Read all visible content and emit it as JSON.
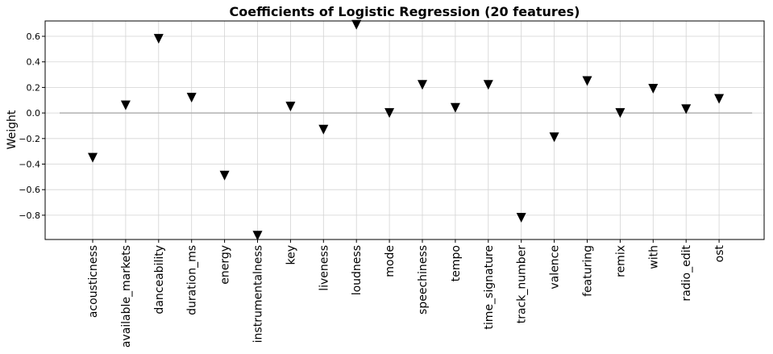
{
  "chart_data": {
    "type": "scatter",
    "title": "Coefficients of Logistic Regression (20 features)",
    "xlabel": "",
    "ylabel": "Weight",
    "marker": "triangle-down",
    "marker_color": "#000000",
    "zero_line_color": "#b0b0b0",
    "grid": true,
    "ylim": [
      -0.99,
      0.72
    ],
    "yticks": [
      0.6,
      0.4,
      0.2,
      0.0,
      -0.2,
      -0.4,
      -0.6,
      -0.8
    ],
    "ytick_labels": [
      "0.6",
      "0.4",
      "0.2",
      "0.0",
      "−0.2",
      "−0.4",
      "−0.6",
      "−0.8"
    ],
    "categories": [
      "acousticness",
      "available_markets",
      "danceability",
      "duration_ms",
      "energy",
      "instrumentalness",
      "key",
      "liveness",
      "loudness",
      "mode",
      "speechiness",
      "tempo",
      "time_signature",
      "track_number",
      "valence",
      "featuring",
      "remix",
      "with",
      "radio_edit",
      "ost"
    ],
    "values": [
      -0.35,
      0.06,
      0.58,
      0.12,
      -0.49,
      -0.96,
      0.05,
      -0.13,
      0.69,
      0.0,
      0.22,
      0.04,
      0.22,
      -0.82,
      -0.19,
      0.25,
      0.0,
      0.19,
      0.03,
      0.11
    ]
  }
}
